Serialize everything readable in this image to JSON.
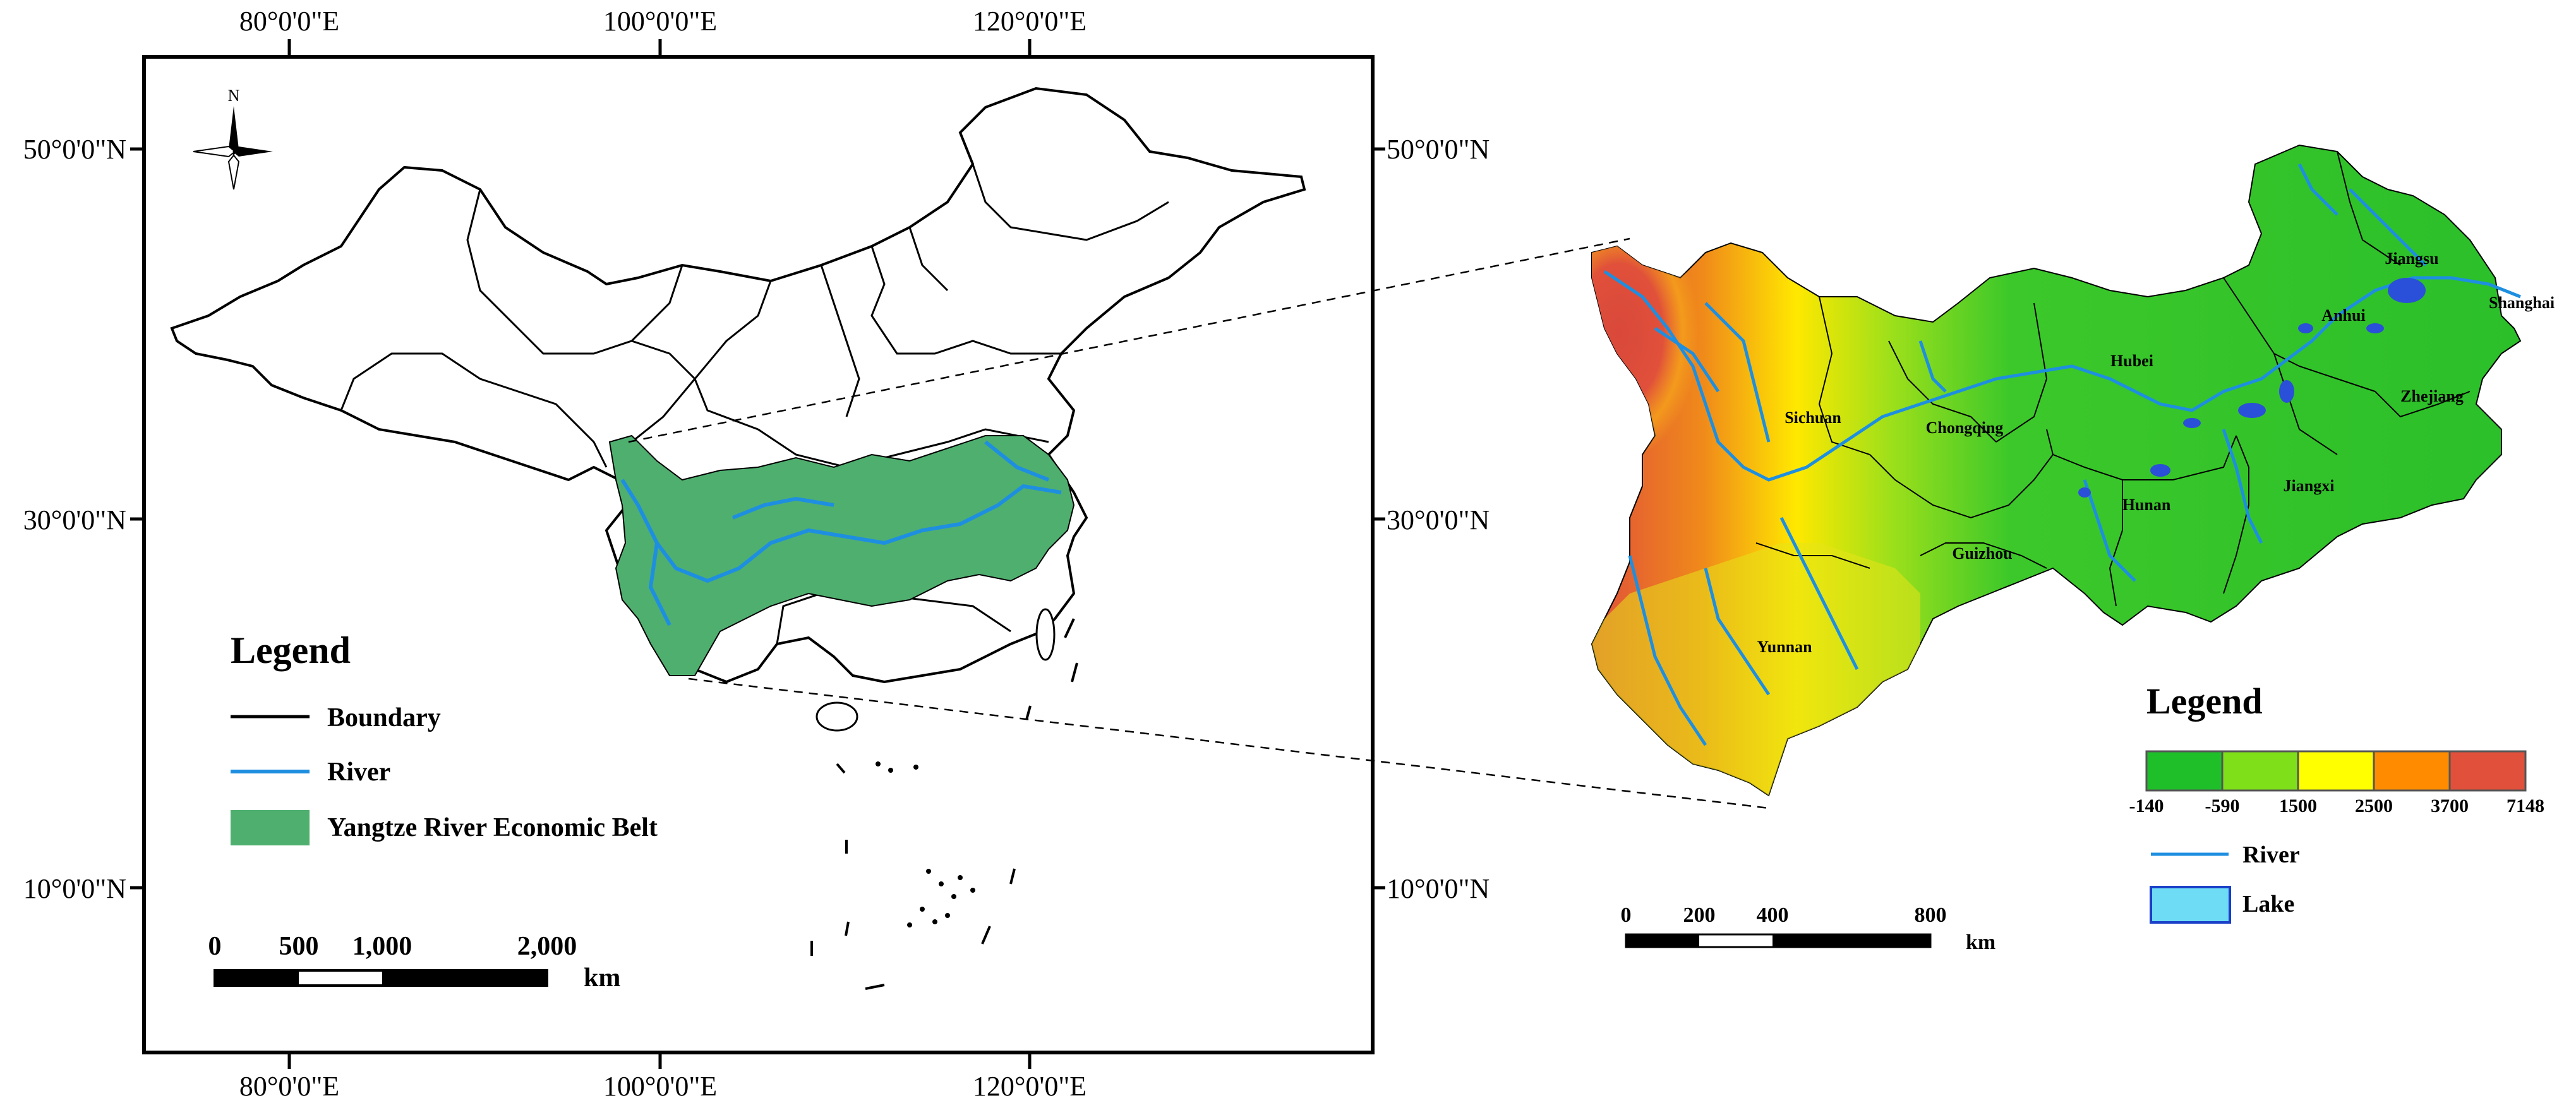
{
  "left_map": {
    "top_ticks": [
      "80°0'0\"E",
      "100°0'0\"E",
      "120°0'0\"E"
    ],
    "bottom_ticks": [
      "80°0'0\"E",
      "100°0'0\"E",
      "120°0'0\"E"
    ],
    "left_ticks": [
      "50°0'0\"N",
      "30°0'0\"N",
      "10°0'0\"N"
    ],
    "right_ticks": [
      "50°0'0\"N",
      "30°0'0\"N",
      "10°0'0\"N"
    ],
    "north_label": "N",
    "legend": {
      "title": "Legend",
      "items": [
        {
          "label": "Boundary",
          "symbol": "line",
          "color": "#000000"
        },
        {
          "label": "River",
          "symbol": "line",
          "color": "#1e8fe0"
        },
        {
          "label": "Yangtze River Economic Belt",
          "symbol": "fill",
          "color": "#4faf6f"
        }
      ]
    },
    "scale_bar": {
      "ticks": [
        "0",
        "500",
        "1,000",
        "2,000"
      ],
      "unit": "km"
    }
  },
  "right_map": {
    "provinces": [
      "Jiangsu",
      "Shanghai",
      "Anhui",
      "Hubei",
      "Zhejiang",
      "Sichuan",
      "Chongqing",
      "Jiangxi",
      "Hunan",
      "Guizhou",
      "Yunnan"
    ],
    "legend": {
      "title": "Legend",
      "elevation_breaks": [
        "-140",
        "-590",
        "1500",
        "2500",
        "3700",
        "7148"
      ],
      "elevation_colors": [
        "#1fbf2a",
        "#7fe01a",
        "#ffff00",
        "#ff8c00",
        "#e0503a"
      ],
      "items": [
        {
          "label": "River",
          "symbol": "line",
          "color": "#1e8fe0"
        },
        {
          "label": "Lake",
          "symbol": "fill",
          "color": "#6fdcf5"
        }
      ]
    },
    "scale_bar": {
      "ticks": [
        "0",
        "200",
        "400",
        "800"
      ],
      "unit": "km"
    }
  }
}
